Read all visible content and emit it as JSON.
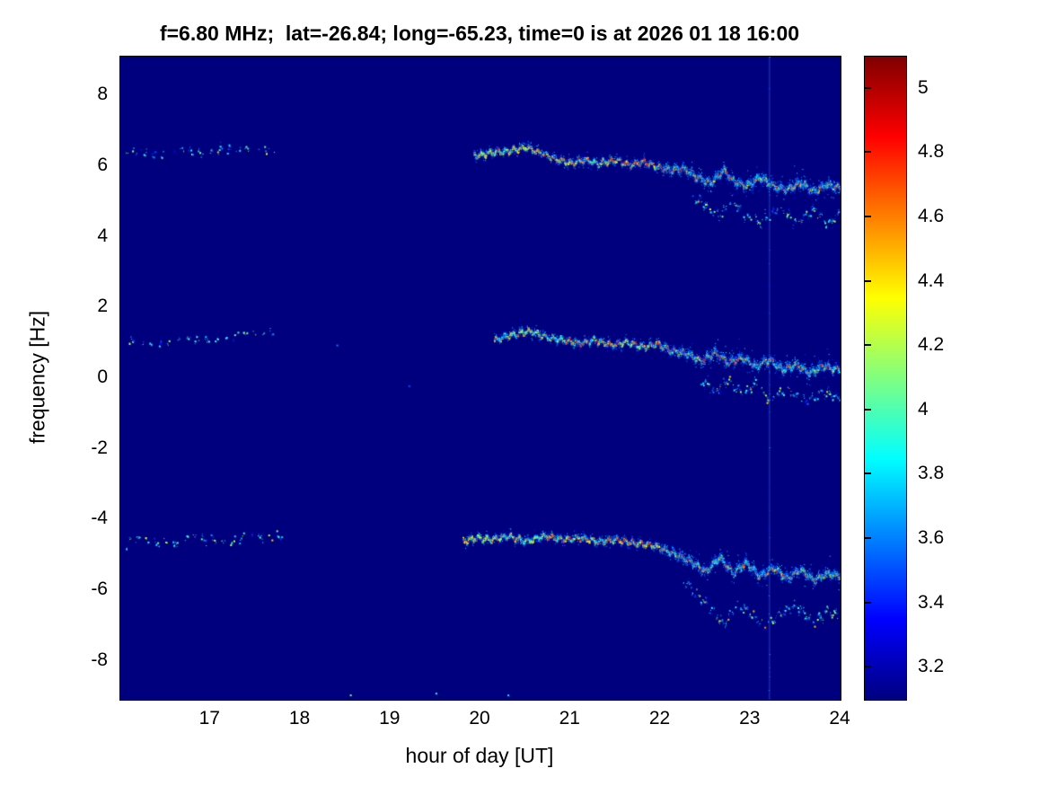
{
  "chart_data": {
    "type": "heatmap",
    "title": "f=6.80 MHz;  lat=-26.84; long=-65.23, time=0 is at 2026 01 18 16:00",
    "xlabel": "hour of day [UT]",
    "ylabel": "frequency [Hz]",
    "xlim": [
      16,
      24
    ],
    "ylim": [
      -9.1,
      9.1
    ],
    "clim": [
      3.1,
      5.1
    ],
    "colormap": "jet",
    "background_value": 3.1,
    "grid": false,
    "legend": "colorbar-right",
    "xticks": [
      17,
      18,
      19,
      20,
      21,
      22,
      23,
      24
    ],
    "yticks": [
      8,
      6,
      4,
      2,
      0,
      -2,
      -4,
      -6,
      -8
    ],
    "colorbar_ticks": [
      5,
      4.8,
      4.6,
      4.4,
      4.2,
      4,
      3.8,
      3.6,
      3.4,
      3.2
    ],
    "colorbar_gradient": [
      "#00007F",
      "#0000FF",
      "#00FFFF",
      "#FFFF00",
      "#FF0000",
      "#7F0000"
    ],
    "artifact_line_t": 23.2,
    "speckles": [
      [
        18.55,
        -8.95,
        4.1
      ],
      [
        19.5,
        -8.9,
        3.9
      ],
      [
        20.3,
        -8.95,
        3.8
      ],
      [
        18.4,
        0.95,
        3.6
      ],
      [
        19.2,
        -0.2,
        3.5
      ]
    ],
    "bands": [
      {
        "name": "upper",
        "segments": [
          {
            "strength": "faint",
            "points": [
              [
                16.05,
                6.4
              ],
              [
                16.25,
                6.45
              ],
              [
                16.45,
                6.35
              ],
              [
                16.65,
                6.45
              ],
              [
                16.9,
                6.4
              ],
              [
                17.1,
                6.5
              ],
              [
                17.3,
                6.45
              ],
              [
                17.55,
                6.55
              ],
              [
                17.72,
                6.5
              ]
            ]
          },
          {
            "strength": "strong",
            "points": [
              [
                19.92,
                6.3
              ],
              [
                20.1,
                6.4
              ],
              [
                20.3,
                6.45
              ],
              [
                20.5,
                6.55
              ],
              [
                20.65,
                6.4
              ],
              [
                20.8,
                6.25
              ],
              [
                21.0,
                6.1
              ],
              [
                21.15,
                6.2
              ],
              [
                21.3,
                6.1
              ],
              [
                21.5,
                6.2
              ],
              [
                21.65,
                6.05
              ],
              [
                21.8,
                6.15
              ],
              [
                21.95,
                6.0
              ],
              [
                22.1,
                5.9
              ],
              [
                22.25,
                5.95
              ],
              [
                22.4,
                5.7
              ],
              [
                22.55,
                5.55
              ],
              [
                22.7,
                5.9
              ],
              [
                22.8,
                5.6
              ],
              [
                22.95,
                5.45
              ],
              [
                23.1,
                5.7
              ],
              [
                23.25,
                5.45
              ],
              [
                23.4,
                5.35
              ],
              [
                23.55,
                5.55
              ],
              [
                23.7,
                5.3
              ],
              [
                23.85,
                5.5
              ],
              [
                24.0,
                5.4
              ]
            ]
          },
          {
            "strength": "echo",
            "points": [
              [
                22.35,
                5.15
              ],
              [
                22.5,
                4.9
              ],
              [
                22.65,
                4.6
              ],
              [
                22.8,
                5.05
              ],
              [
                22.95,
                4.55
              ],
              [
                23.1,
                4.4
              ],
              [
                23.3,
                4.85
              ],
              [
                23.5,
                4.45
              ],
              [
                23.7,
                4.75
              ],
              [
                23.85,
                4.4
              ],
              [
                24.0,
                4.7
              ]
            ]
          }
        ]
      },
      {
        "name": "middle",
        "segments": [
          {
            "strength": "faint",
            "points": [
              [
                16.05,
                1.05
              ],
              [
                16.3,
                1.0
              ],
              [
                16.55,
                1.1
              ],
              [
                16.8,
                1.05
              ],
              [
                17.05,
                1.15
              ],
              [
                17.3,
                1.2
              ],
              [
                17.5,
                1.25
              ],
              [
                17.7,
                1.35
              ]
            ]
          },
          {
            "strength": "strong",
            "points": [
              [
                20.15,
                1.1
              ],
              [
                20.35,
                1.25
              ],
              [
                20.55,
                1.35
              ],
              [
                20.7,
                1.2
              ],
              [
                20.9,
                1.1
              ],
              [
                21.1,
                1.0
              ],
              [
                21.25,
                1.1
              ],
              [
                21.45,
                0.95
              ],
              [
                21.6,
                1.05
              ],
              [
                21.8,
                0.9
              ],
              [
                21.95,
                1.0
              ],
              [
                22.1,
                0.8
              ],
              [
                22.3,
                0.7
              ],
              [
                22.45,
                0.5
              ],
              [
                22.6,
                0.75
              ],
              [
                22.75,
                0.45
              ],
              [
                22.9,
                0.6
              ],
              [
                23.05,
                0.35
              ],
              [
                23.2,
                0.55
              ],
              [
                23.35,
                0.25
              ],
              [
                23.5,
                0.4
              ],
              [
                23.65,
                0.15
              ],
              [
                23.8,
                0.35
              ],
              [
                24.0,
                0.25
              ]
            ]
          },
          {
            "strength": "echo",
            "points": [
              [
                22.45,
                -0.05
              ],
              [
                22.6,
                -0.35
              ],
              [
                22.75,
                0.0
              ],
              [
                22.9,
                -0.45
              ],
              [
                23.05,
                -0.15
              ],
              [
                23.2,
                -0.6
              ],
              [
                23.4,
                -0.3
              ],
              [
                23.6,
                -0.65
              ],
              [
                23.8,
                -0.4
              ],
              [
                24.0,
                -0.55
              ]
            ]
          }
        ]
      },
      {
        "name": "lower",
        "segments": [
          {
            "strength": "faint",
            "points": [
              [
                16.05,
                -4.7
              ],
              [
                16.2,
                -4.55
              ],
              [
                16.35,
                -4.7
              ],
              [
                16.5,
                -4.55
              ],
              [
                16.65,
                -4.65
              ],
              [
                16.8,
                -4.5
              ],
              [
                16.95,
                -4.6
              ],
              [
                17.1,
                -4.5
              ],
              [
                17.25,
                -4.6
              ],
              [
                17.4,
                -4.45
              ],
              [
                17.55,
                -4.55
              ],
              [
                17.7,
                -4.4
              ],
              [
                17.8,
                -4.45
              ]
            ]
          },
          {
            "strength": "strong",
            "points": [
              [
                19.8,
                -4.6
              ],
              [
                19.95,
                -4.5
              ],
              [
                20.1,
                -4.55
              ],
              [
                20.3,
                -4.45
              ],
              [
                20.5,
                -4.6
              ],
              [
                20.7,
                -4.45
              ],
              [
                20.9,
                -4.55
              ],
              [
                21.1,
                -4.5
              ],
              [
                21.3,
                -4.6
              ],
              [
                21.5,
                -4.55
              ],
              [
                21.7,
                -4.65
              ],
              [
                21.9,
                -4.7
              ],
              [
                22.05,
                -4.85
              ],
              [
                22.2,
                -5.0
              ],
              [
                22.35,
                -5.2
              ],
              [
                22.5,
                -5.45
              ],
              [
                22.65,
                -5.05
              ],
              [
                22.8,
                -5.5
              ],
              [
                22.95,
                -5.2
              ],
              [
                23.1,
                -5.6
              ],
              [
                23.25,
                -5.35
              ],
              [
                23.4,
                -5.65
              ],
              [
                23.55,
                -5.4
              ],
              [
                23.7,
                -5.7
              ],
              [
                23.85,
                -5.5
              ],
              [
                24.0,
                -5.6
              ]
            ]
          },
          {
            "strength": "echo",
            "points": [
              [
                22.25,
                -5.7
              ],
              [
                22.4,
                -6.1
              ],
              [
                22.55,
                -6.5
              ],
              [
                22.7,
                -6.95
              ],
              [
                22.85,
                -6.4
              ],
              [
                23.0,
                -6.65
              ],
              [
                23.15,
                -7.05
              ],
              [
                23.3,
                -6.7
              ],
              [
                23.5,
                -6.4
              ],
              [
                23.7,
                -6.9
              ],
              [
                23.85,
                -6.55
              ],
              [
                24.0,
                -6.75
              ]
            ]
          }
        ]
      }
    ]
  }
}
